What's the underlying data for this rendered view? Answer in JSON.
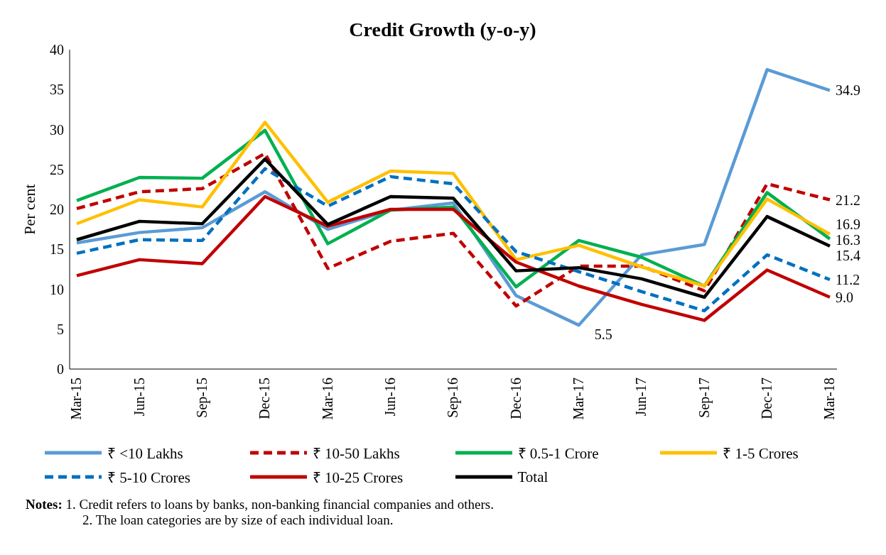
{
  "chart_data": {
    "type": "line",
    "title": "Credit Growth (y-o-y)",
    "ylabel": "Per cent",
    "categories": [
      "Mar-15",
      "Jun-15",
      "Sep-15",
      "Dec-15",
      "Mar-16",
      "Jun-16",
      "Sep-16",
      "Dec-16",
      "Mar-17",
      "Jun-17",
      "Sep-17",
      "Dec-17",
      "Mar-18"
    ],
    "ylim": [
      0,
      40
    ],
    "yticks": [
      0,
      5,
      10,
      15,
      20,
      25,
      30,
      35,
      40
    ],
    "grid": false,
    "legend": "bottom",
    "marker": "none",
    "series": [
      {
        "name": "₹ <10 Lakhs",
        "color": "#5b9bd5",
        "line_style": "solid",
        "values": [
          15.8,
          17.1,
          17.7,
          22.2,
          17.5,
          19.9,
          20.8,
          9.2,
          5.5,
          14.3,
          15.6,
          37.5,
          34.9
        ],
        "value_labels": [
          null,
          null,
          null,
          null,
          null,
          null,
          null,
          null,
          "5.5",
          null,
          null,
          null,
          "34.9"
        ]
      },
      {
        "name": "₹ 10-50 Lakhs",
        "color": "#c00000",
        "line_style": "dashed",
        "values": [
          20.1,
          22.2,
          22.6,
          27.0,
          12.6,
          16.0,
          17.0,
          7.9,
          12.9,
          12.9,
          9.8,
          23.2,
          21.2
        ],
        "value_labels": [
          null,
          null,
          null,
          null,
          null,
          null,
          null,
          null,
          null,
          null,
          null,
          null,
          "21.2"
        ]
      },
      {
        "name": "₹ 0.5-1 Crore",
        "color": "#00b050",
        "line_style": "solid",
        "values": [
          21.1,
          24.0,
          23.9,
          29.9,
          15.7,
          19.9,
          20.3,
          10.3,
          16.1,
          14.0,
          10.4,
          22.1,
          16.3
        ],
        "value_labels": [
          null,
          null,
          null,
          null,
          null,
          null,
          null,
          null,
          null,
          null,
          null,
          null,
          "16.3"
        ]
      },
      {
        "name": "₹ 1-5 Crores",
        "color": "#ffc000",
        "line_style": "solid",
        "values": [
          18.2,
          21.2,
          20.3,
          30.9,
          20.9,
          24.8,
          24.5,
          13.7,
          15.5,
          12.8,
          10.4,
          21.3,
          16.9
        ],
        "value_labels": [
          null,
          null,
          null,
          null,
          null,
          null,
          null,
          null,
          null,
          null,
          null,
          null,
          "16.9"
        ]
      },
      {
        "name": "₹ 5-10 Crores",
        "color": "#0070c0",
        "line_style": "dashed",
        "values": [
          14.5,
          16.2,
          16.1,
          25.1,
          20.4,
          24.1,
          23.2,
          14.7,
          12.2,
          9.7,
          7.3,
          14.3,
          11.2
        ],
        "value_labels": [
          null,
          null,
          null,
          null,
          null,
          null,
          null,
          null,
          null,
          null,
          null,
          null,
          "11.2"
        ]
      },
      {
        "name": "₹ 10-25 Crores",
        "color": "#c00000",
        "line_style": "solid",
        "values": [
          11.7,
          13.7,
          13.2,
          21.6,
          17.9,
          20.0,
          20.0,
          13.4,
          10.4,
          8.1,
          6.1,
          12.4,
          9.0
        ],
        "value_labels": [
          null,
          null,
          null,
          null,
          null,
          null,
          null,
          null,
          null,
          null,
          null,
          null,
          "9.0"
        ]
      },
      {
        "name": "Total",
        "color": "#000000",
        "line_style": "solid",
        "values": [
          16.2,
          18.5,
          18.2,
          26.3,
          18.1,
          21.6,
          21.4,
          12.3,
          12.7,
          11.3,
          9.0,
          19.1,
          15.4
        ],
        "value_labels": [
          null,
          null,
          null,
          null,
          null,
          null,
          null,
          null,
          null,
          null,
          null,
          null,
          "15.4"
        ]
      }
    ],
    "annotations": [
      "Notes: 1. Credit refers to loans by banks, non-banking financial companies and others.",
      "2. The loan categories are by size of each individual loan."
    ]
  }
}
